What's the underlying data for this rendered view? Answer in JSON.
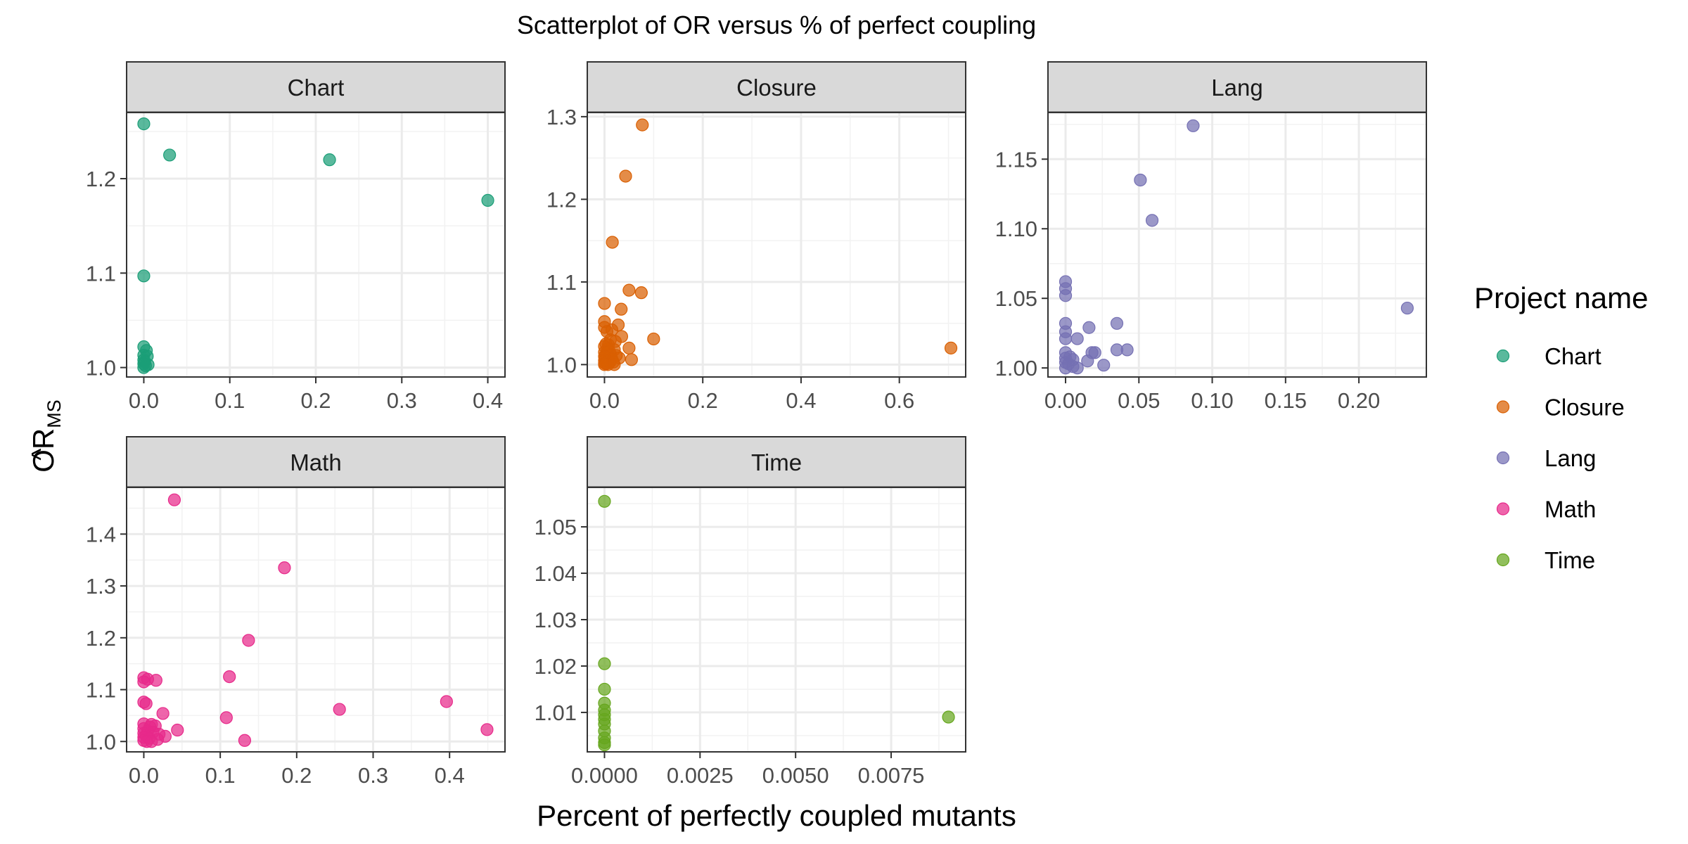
{
  "chart_data": {
    "type": "scatter",
    "title": "Scatterplot of OR versus % of perfect coupling",
    "xlabel": "Percent of perfectly coupled mutants",
    "ylabel": {
      "main": "OR",
      "hat": "^",
      "subscript": "MS"
    },
    "grid": true,
    "legend": {
      "title": "Project name",
      "placement": "right",
      "entries": [
        "Chart",
        "Closure",
        "Lang",
        "Math",
        "Time"
      ]
    },
    "colors": {
      "Chart": "#1B9E77",
      "Closure": "#D95F02",
      "Lang": "#7570B3",
      "Math": "#E7298A",
      "Time": "#66A61E",
      "strip_bg": "#D9D9D9",
      "grid_major": "#EBEBEB",
      "grid_minor": "#F2F2F2",
      "panel_border": "#333333"
    },
    "panels": [
      {
        "name": "Chart",
        "xlim": [
          -0.02,
          0.42
        ],
        "ylim": [
          0.99,
          1.27
        ],
        "xticks": [
          0,
          0.1,
          0.2,
          0.3,
          0.4
        ],
        "xtick_labels": [
          "0.0",
          "0.1",
          "0.2",
          "0.3",
          "0.4"
        ],
        "yticks": [
          1.0,
          1.1,
          1.2
        ],
        "ytick_labels": [
          "1.0",
          "1.1",
          "1.2"
        ],
        "points": [
          [
            0.0,
            1.258
          ],
          [
            0.03,
            1.225
          ],
          [
            0.216,
            1.22
          ],
          [
            0.4,
            1.177
          ],
          [
            0.0,
            1.097
          ],
          [
            0.0,
            1.022
          ],
          [
            0.003,
            1.018
          ],
          [
            0.0,
            1.013
          ],
          [
            0.004,
            1.012
          ],
          [
            0.0,
            1.008
          ],
          [
            0.001,
            1.006
          ],
          [
            0.0,
            1.004
          ],
          [
            0.005,
            1.003
          ],
          [
            0.002,
            1.002
          ],
          [
            0.0,
            1.0
          ]
        ]
      },
      {
        "name": "Closure",
        "xlim": [
          -0.035,
          0.735
        ],
        "ylim": [
          0.985,
          1.305
        ],
        "xticks": [
          0,
          0.2,
          0.4,
          0.6
        ],
        "xtick_labels": [
          "0.0",
          "0.2",
          "0.4",
          "0.6"
        ],
        "yticks": [
          1.0,
          1.1,
          1.2,
          1.3
        ],
        "ytick_labels": [
          "1.0",
          "1.1",
          "1.2",
          "1.3"
        ],
        "points": [
          [
            0.077,
            1.29
          ],
          [
            0.043,
            1.228
          ],
          [
            0.016,
            1.148
          ],
          [
            0.05,
            1.09
          ],
          [
            0.075,
            1.087
          ],
          [
            0.0,
            1.074
          ],
          [
            0.034,
            1.067
          ],
          [
            0.0,
            1.052
          ],
          [
            0.028,
            1.048
          ],
          [
            0.0,
            1.045
          ],
          [
            0.015,
            1.042
          ],
          [
            0.005,
            1.04
          ],
          [
            0.035,
            1.034
          ],
          [
            0.1,
            1.031
          ],
          [
            0.012,
            1.03
          ],
          [
            0.022,
            1.028
          ],
          [
            0.003,
            1.025
          ],
          [
            0.008,
            1.024
          ],
          [
            0.05,
            1.02
          ],
          [
            0.705,
            1.02
          ],
          [
            0.0,
            1.022
          ],
          [
            0.006,
            1.019
          ],
          [
            0.02,
            1.018
          ],
          [
            0.01,
            1.016
          ],
          [
            0.0,
            1.015
          ],
          [
            0.004,
            1.014
          ],
          [
            0.013,
            1.012
          ],
          [
            0.024,
            1.011
          ],
          [
            0.0,
            1.01
          ],
          [
            0.002,
            1.009
          ],
          [
            0.009,
            1.008
          ],
          [
            0.03,
            1.008
          ],
          [
            0.015,
            1.007
          ],
          [
            0.055,
            1.006
          ],
          [
            0.0,
            1.005
          ],
          [
            0.005,
            1.004
          ],
          [
            0.011,
            1.003
          ],
          [
            0.018,
            1.003
          ],
          [
            0.0,
            1.002
          ],
          [
            0.003,
            1.001
          ],
          [
            0.007,
            1.0
          ],
          [
            0.0,
            1.0
          ],
          [
            0.02,
            1.0
          ]
        ]
      },
      {
        "name": "Lang",
        "xlim": [
          -0.012,
          0.246
        ],
        "ylim": [
          0.9935,
          1.1835
        ],
        "xticks": [
          0,
          0.05,
          0.1,
          0.15,
          0.2
        ],
        "xtick_labels": [
          "0.00",
          "0.05",
          "0.10",
          "0.15",
          "0.20"
        ],
        "yticks": [
          1.0,
          1.05,
          1.1,
          1.15
        ],
        "ytick_labels": [
          "1.00",
          "1.05",
          "1.10",
          "1.15"
        ],
        "points": [
          [
            0.087,
            1.174
          ],
          [
            0.051,
            1.135
          ],
          [
            0.059,
            1.106
          ],
          [
            0.233,
            1.043
          ],
          [
            0.0,
            1.062
          ],
          [
            0.0,
            1.057
          ],
          [
            0.0,
            1.052
          ],
          [
            0.0,
            1.032
          ],
          [
            0.035,
            1.032
          ],
          [
            0.016,
            1.029
          ],
          [
            0.0,
            1.026
          ],
          [
            0.0,
            1.021
          ],
          [
            0.008,
            1.021
          ],
          [
            0.035,
            1.013
          ],
          [
            0.042,
            1.013
          ],
          [
            0.018,
            1.011
          ],
          [
            0.02,
            1.011
          ],
          [
            0.0,
            1.011
          ],
          [
            0.003,
            1.008
          ],
          [
            0.0,
            1.007
          ],
          [
            0.005,
            1.006
          ],
          [
            0.015,
            1.005
          ],
          [
            0.0,
            1.004
          ],
          [
            0.002,
            1.003
          ],
          [
            0.026,
            1.002
          ],
          [
            0.005,
            1.001
          ],
          [
            0.0,
            1.0
          ],
          [
            0.008,
            1.0
          ]
        ]
      },
      {
        "name": "Math",
        "xlim": [
          -0.0225,
          0.4725
        ],
        "ylim": [
          0.98,
          1.49
        ],
        "xticks": [
          0,
          0.1,
          0.2,
          0.3,
          0.4
        ],
        "xtick_labels": [
          "0.0",
          "0.1",
          "0.2",
          "0.3",
          "0.4"
        ],
        "yticks": [
          1.0,
          1.1,
          1.2,
          1.3,
          1.4
        ],
        "ytick_labels": [
          "1.0",
          "1.1",
          "1.2",
          "1.3",
          "1.4"
        ],
        "points": [
          [
            0.04,
            1.466
          ],
          [
            0.184,
            1.335
          ],
          [
            0.137,
            1.195
          ],
          [
            0.112,
            1.125
          ],
          [
            0.0,
            1.123
          ],
          [
            0.005,
            1.12
          ],
          [
            0.016,
            1.118
          ],
          [
            0.0,
            1.115
          ],
          [
            0.0,
            1.076
          ],
          [
            0.003,
            1.073
          ],
          [
            0.396,
            1.077
          ],
          [
            0.256,
            1.062
          ],
          [
            0.025,
            1.054
          ],
          [
            0.108,
            1.046
          ],
          [
            0.0,
            1.034
          ],
          [
            0.01,
            1.033
          ],
          [
            0.015,
            1.03
          ],
          [
            0.008,
            1.028
          ],
          [
            0.0,
            1.025
          ],
          [
            0.449,
            1.023
          ],
          [
            0.044,
            1.022
          ],
          [
            0.005,
            1.02
          ],
          [
            0.012,
            1.018
          ],
          [
            0.0,
            1.016
          ],
          [
            0.02,
            1.014
          ],
          [
            0.003,
            1.012
          ],
          [
            0.028,
            1.01
          ],
          [
            0.0,
            1.008
          ],
          [
            0.007,
            1.006
          ],
          [
            0.018,
            1.004
          ],
          [
            0.132,
            1.002
          ],
          [
            0.0,
            1.002
          ],
          [
            0.004,
            1.0
          ],
          [
            0.01,
            1.0
          ]
        ]
      },
      {
        "name": "Time",
        "xlim": [
          -0.00045,
          0.00945
        ],
        "ylim": [
          1.0015,
          1.0585
        ],
        "xticks": [
          0,
          0.0025,
          0.005,
          0.0075
        ],
        "xtick_labels": [
          "0.0000",
          "0.0025",
          "0.0050",
          "0.0075"
        ],
        "yticks": [
          1.01,
          1.02,
          1.03,
          1.04,
          1.05
        ],
        "ytick_labels": [
          "1.01",
          "1.02",
          "1.03",
          "1.04",
          "1.05"
        ],
        "points": [
          [
            0.0,
            1.0555
          ],
          [
            0.0,
            1.0205
          ],
          [
            0.0,
            1.015
          ],
          [
            0.0,
            1.012
          ],
          [
            0.0,
            1.0105
          ],
          [
            0.0,
            1.0095
          ],
          [
            0.0,
            1.0085
          ],
          [
            0.0,
            1.0075
          ],
          [
            0.0,
            1.006
          ],
          [
            0.0,
            1.0045
          ],
          [
            0.0,
            1.0035
          ],
          [
            0.0,
            1.003
          ],
          [
            0.009,
            1.009
          ]
        ]
      }
    ]
  }
}
